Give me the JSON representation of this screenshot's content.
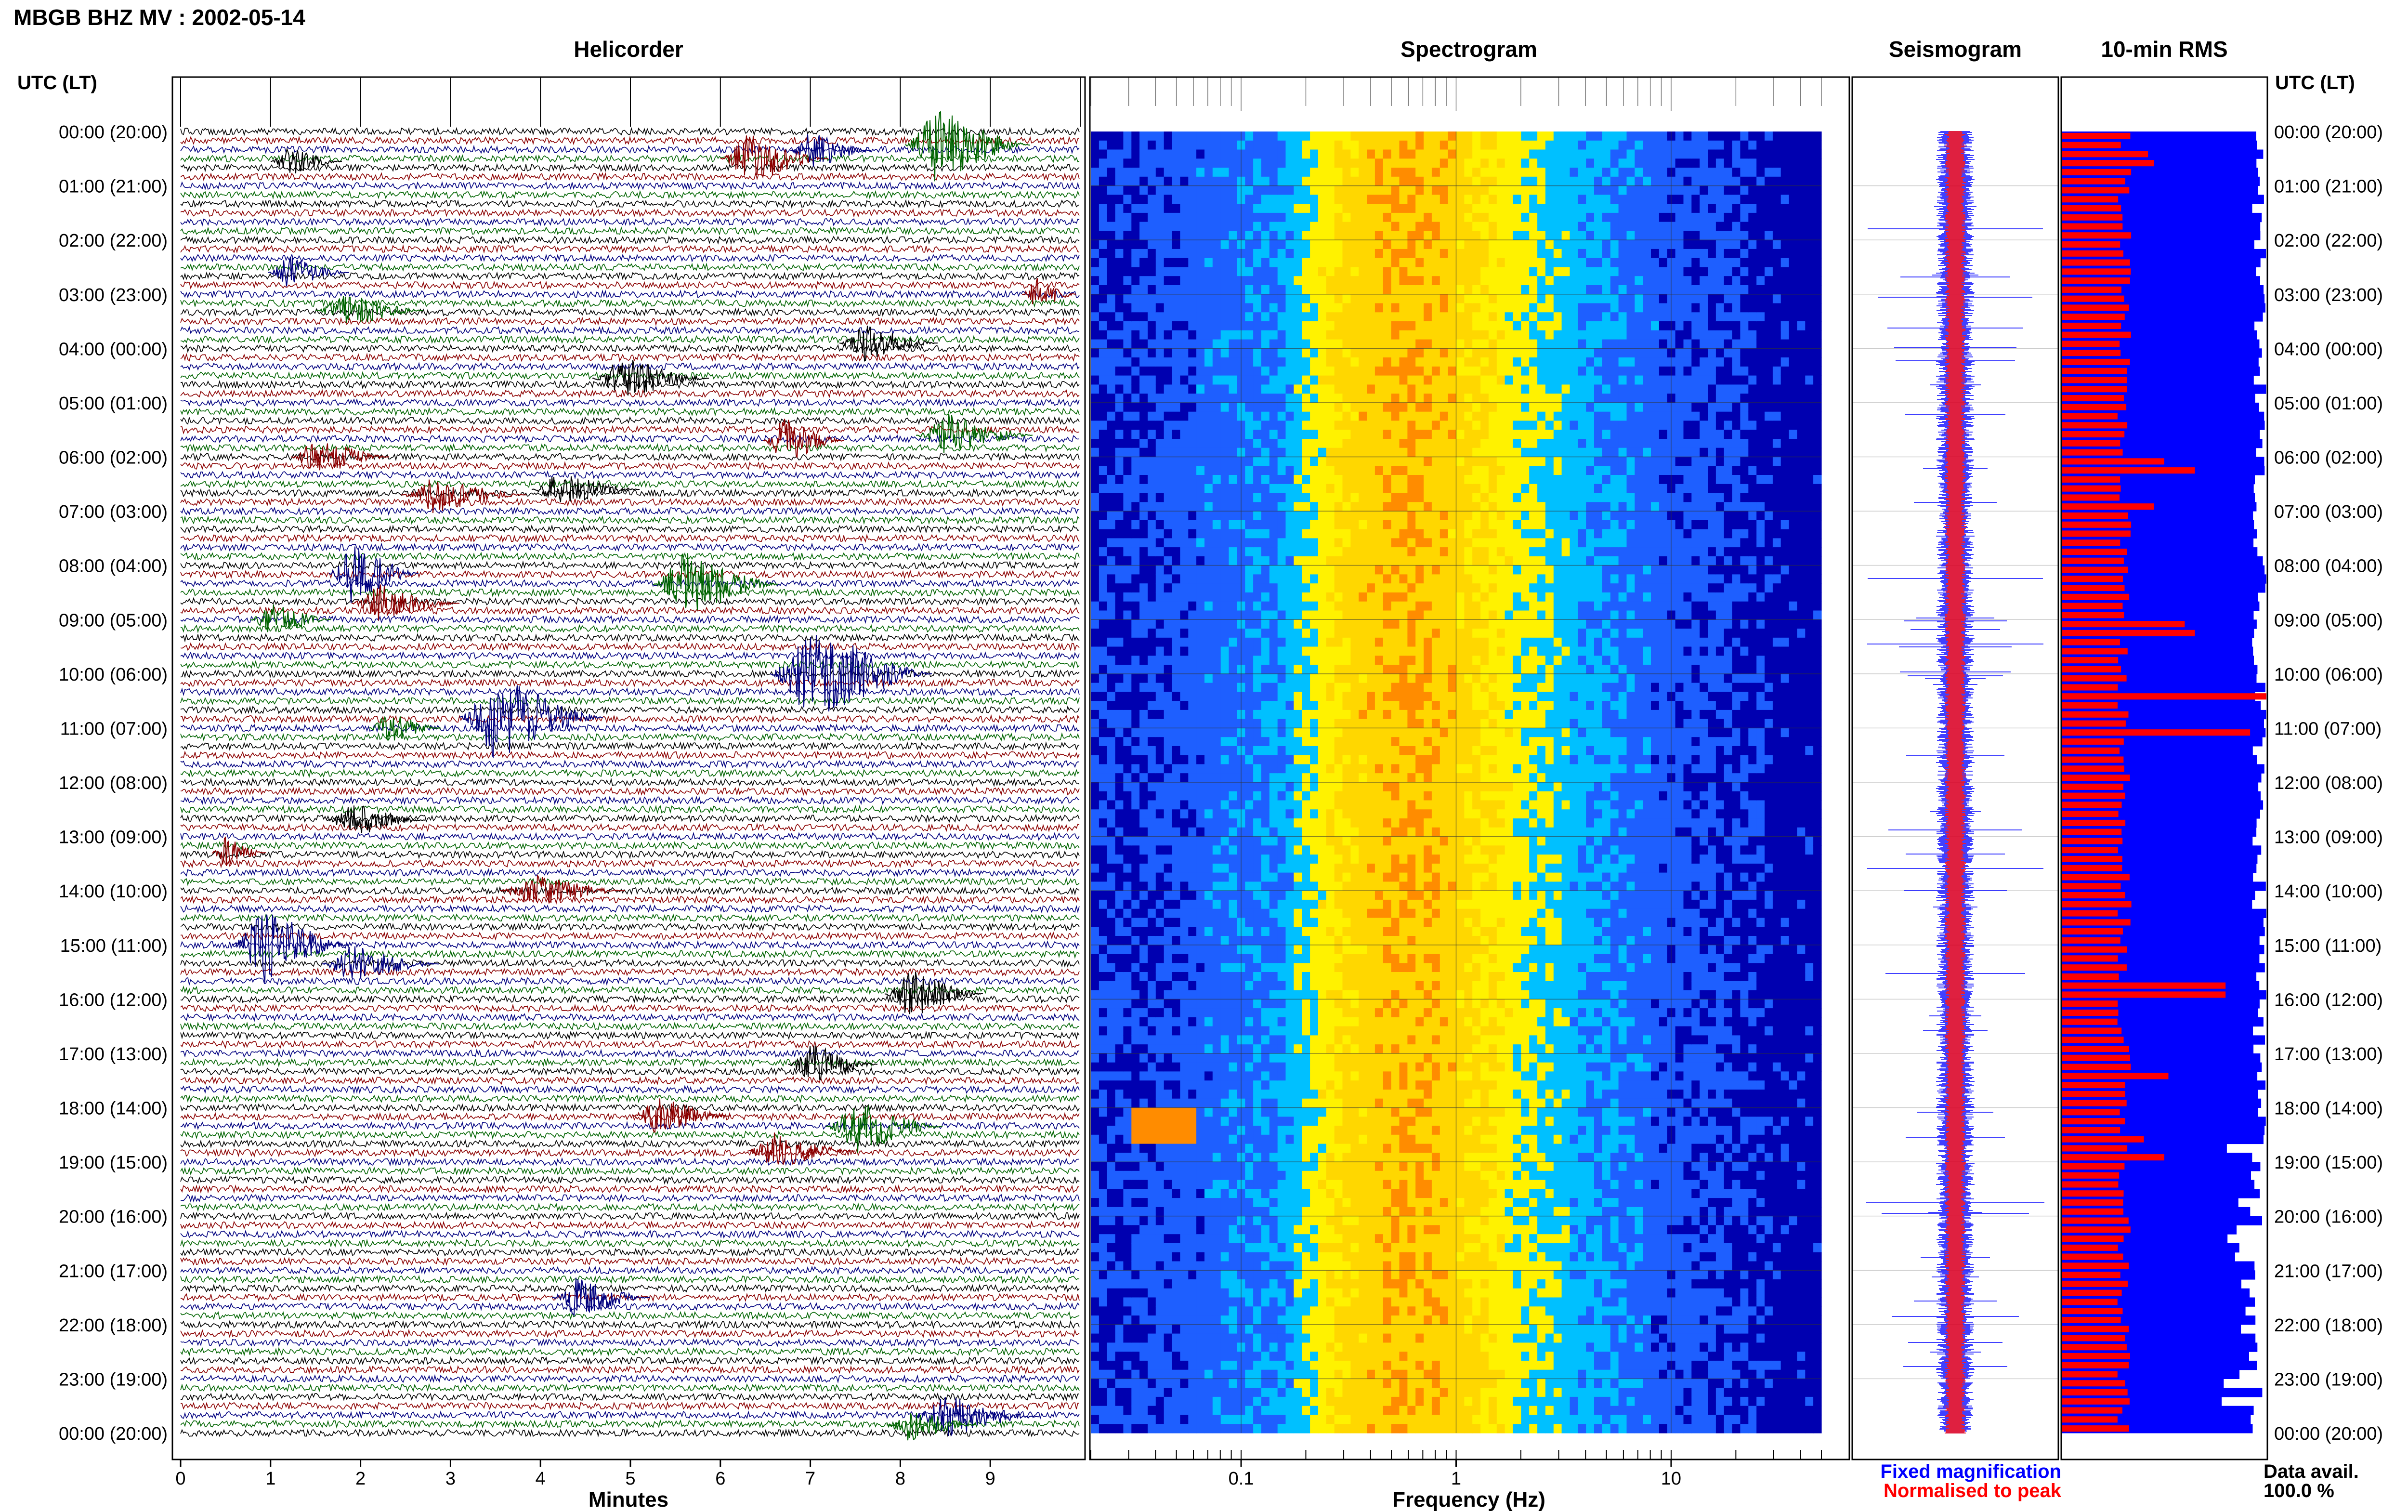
{
  "title": "MBGB BHZ MV : 2002-05-14",
  "chart_data": [
    {
      "type": "line",
      "title": "Helicorder",
      "time_axis_label": "UTC (LT)",
      "xlabel": "Minutes",
      "x_ticks": [
        "0",
        "1",
        "2",
        "3",
        "4",
        "5",
        "6",
        "7",
        "8",
        "9"
      ],
      "xlim": [
        0,
        10
      ],
      "row_labels": [
        "00:00 (20:00)",
        "01:00 (21:00)",
        "02:00 (22:00)",
        "03:00 (23:00)",
        "04:00 (00:00)",
        "05:00 (01:00)",
        "06:00 (02:00)",
        "07:00 (03:00)",
        "08:00 (04:00)",
        "09:00 (05:00)",
        "10:00 (06:00)",
        "11:00 (07:00)",
        "12:00 (08:00)",
        "13:00 (09:00)",
        "14:00 (10:00)",
        "15:00 (11:00)",
        "16:00 (12:00)",
        "17:00 (13:00)",
        "18:00 (14:00)",
        "19:00 (15:00)",
        "20:00 (16:00)",
        "21:00 (17:00)",
        "22:00 (18:00)",
        "23:00 (19:00)",
        "00:00 (20:00)"
      ],
      "traces_per_hour": 6,
      "trace_colors": [
        "#000000",
        "#8b0000",
        "#00007f",
        "#006400"
      ],
      "events": [
        {
          "hour": 0.25,
          "minute": 8.4,
          "dur": 1.4,
          "amp": 3.2,
          "color": "#006400"
        },
        {
          "hour": 0.5,
          "minute": 6.3,
          "dur": 1.2,
          "amp": 2.2,
          "color": "#8b0000"
        },
        {
          "hour": 0.35,
          "minute": 7.0,
          "dur": 0.9,
          "amp": 1.6,
          "color": "#00007f"
        },
        {
          "hour": 0.55,
          "minute": 1.2,
          "dur": 0.8,
          "amp": 1.2,
          "color": "#000000"
        },
        {
          "hour": 2.6,
          "minute": 1.2,
          "dur": 0.9,
          "amp": 1.4,
          "color": "#00007f"
        },
        {
          "hour": 3.3,
          "minute": 1.8,
          "dur": 1.2,
          "amp": 1.5,
          "color": "#006400"
        },
        {
          "hour": 3.0,
          "minute": 9.5,
          "dur": 0.6,
          "amp": 1.5,
          "color": "#8b0000"
        },
        {
          "hour": 3.9,
          "minute": 7.6,
          "dur": 1.1,
          "amp": 1.5,
          "color": "#000000"
        },
        {
          "hour": 4.55,
          "minute": 4.9,
          "dur": 1.3,
          "amp": 1.8,
          "color": "#000000"
        },
        {
          "hour": 5.7,
          "minute": 6.7,
          "dur": 0.9,
          "amp": 2.0,
          "color": "#8b0000"
        },
        {
          "hour": 5.6,
          "minute": 8.5,
          "dur": 1.3,
          "amp": 1.8,
          "color": "#006400"
        },
        {
          "hour": 6.0,
          "minute": 1.5,
          "dur": 1.1,
          "amp": 1.6,
          "color": "#8b0000"
        },
        {
          "hour": 6.7,
          "minute": 2.8,
          "dur": 1.4,
          "amp": 1.5,
          "color": "#8b0000"
        },
        {
          "hour": 6.6,
          "minute": 4.2,
          "dur": 1.2,
          "amp": 1.4,
          "color": "#000000"
        },
        {
          "hour": 8.15,
          "minute": 1.9,
          "dur": 1.0,
          "amp": 2.5,
          "color": "#00007f"
        },
        {
          "hour": 8.35,
          "minute": 5.6,
          "dur": 1.4,
          "amp": 2.8,
          "color": "#006400"
        },
        {
          "hour": 8.7,
          "minute": 2.2,
          "dur": 1.2,
          "amp": 1.6,
          "color": "#8b0000"
        },
        {
          "hour": 9.0,
          "minute": 1.0,
          "dur": 0.9,
          "amp": 1.5,
          "color": "#006400"
        },
        {
          "hour": 10.0,
          "minute": 7.0,
          "dur": 1.8,
          "amp": 4.0,
          "color": "#00007f"
        },
        {
          "hour": 10.8,
          "minute": 3.5,
          "dur": 1.6,
          "amp": 3.5,
          "color": "#00007f"
        },
        {
          "hour": 11.0,
          "minute": 2.3,
          "dur": 0.8,
          "amp": 1.4,
          "color": "#006400"
        },
        {
          "hour": 12.7,
          "minute": 1.9,
          "dur": 1.1,
          "amp": 1.5,
          "color": "#000000"
        },
        {
          "hour": 13.3,
          "minute": 0.5,
          "dur": 0.6,
          "amp": 1.3,
          "color": "#8b0000"
        },
        {
          "hour": 14.0,
          "minute": 3.9,
          "dur": 1.4,
          "amp": 1.4,
          "color": "#8b0000"
        },
        {
          "hour": 15.0,
          "minute": 0.9,
          "dur": 1.3,
          "amp": 3.2,
          "color": "#00007f"
        },
        {
          "hour": 15.35,
          "minute": 1.9,
          "dur": 1.3,
          "amp": 1.6,
          "color": "#00007f"
        },
        {
          "hour": 15.9,
          "minute": 8.1,
          "dur": 1.1,
          "amp": 2.0,
          "color": "#000000"
        },
        {
          "hour": 17.2,
          "minute": 7.0,
          "dur": 1.0,
          "amp": 1.7,
          "color": "#000000"
        },
        {
          "hour": 18.15,
          "minute": 5.3,
          "dur": 1.1,
          "amp": 1.6,
          "color": "#8b0000"
        },
        {
          "hour": 18.35,
          "minute": 7.5,
          "dur": 1.3,
          "amp": 2.2,
          "color": "#006400"
        },
        {
          "hour": 18.8,
          "minute": 6.6,
          "dur": 1.2,
          "amp": 1.5,
          "color": "#8b0000"
        },
        {
          "hour": 21.5,
          "minute": 4.4,
          "dur": 1.1,
          "amp": 1.7,
          "color": "#00007f"
        },
        {
          "hour": 23.7,
          "minute": 8.5,
          "dur": 1.4,
          "amp": 1.8,
          "color": "#00007f"
        },
        {
          "hour": 23.85,
          "minute": 8.1,
          "dur": 1.0,
          "amp": 1.4,
          "color": "#006400"
        }
      ]
    },
    {
      "type": "heatmap",
      "title": "Spectrogram",
      "xlabel": "Frequency (Hz)",
      "x_scale": "log",
      "x_ticks": [
        "0.1",
        "1",
        "10"
      ],
      "xlim": [
        0.02,
        50
      ],
      "row_range_hours": [
        0,
        24
      ],
      "colormap": [
        "#fff200",
        "#ff8c00",
        "#ffd700",
        "#00c0ff",
        "#1e5fff",
        "#0000b0"
      ],
      "profile_hz": [
        0.03,
        0.15,
        0.3,
        0.6,
        1.0,
        2.0,
        4.0,
        8.0,
        20.0,
        35.0
      ],
      "profile_level": [
        0.1,
        0.3,
        0.75,
        0.9,
        0.8,
        0.55,
        0.35,
        0.2,
        0.1,
        0.0
      ],
      "hot_spot": {
        "hour": 18.2,
        "freq_min_hz": 0.03,
        "freq_max_hz": 0.06
      }
    },
    {
      "type": "line",
      "title": "Seismogram",
      "legend": [
        {
          "name": "Fixed magnification",
          "color": "#0000ff"
        },
        {
          "name": "Normalised to peak",
          "color": "#ff0000"
        }
      ]
    },
    {
      "type": "bar",
      "title": "10-min RMS",
      "orientation": "horizontal",
      "time_axis_label": "UTC (LT)",
      "bins_per_hour": 6,
      "series": [
        {
          "color": "#0000ff",
          "values": "availability"
        },
        {
          "color": "#ff0000",
          "values": "rms"
        }
      ],
      "rms_peaks": [
        {
          "hour": 0.3,
          "level": 0.42
        },
        {
          "hour": 0.5,
          "level": 0.45
        },
        {
          "hour": 5.95,
          "level": 0.5
        },
        {
          "hour": 6.1,
          "level": 0.65
        },
        {
          "hour": 6.8,
          "level": 0.45
        },
        {
          "hour": 8.95,
          "level": 0.6
        },
        {
          "hour": 9.1,
          "level": 0.65
        },
        {
          "hour": 10.4,
          "level": 1.0
        },
        {
          "hour": 10.95,
          "level": 0.92
        },
        {
          "hour": 15.75,
          "level": 0.8
        },
        {
          "hour": 17.4,
          "level": 0.52
        },
        {
          "hour": 18.5,
          "level": 0.4
        },
        {
          "hour": 18.9,
          "level": 0.5
        }
      ],
      "data_availability_label": "Data avail.",
      "data_availability_value": "100.0 %"
    }
  ]
}
